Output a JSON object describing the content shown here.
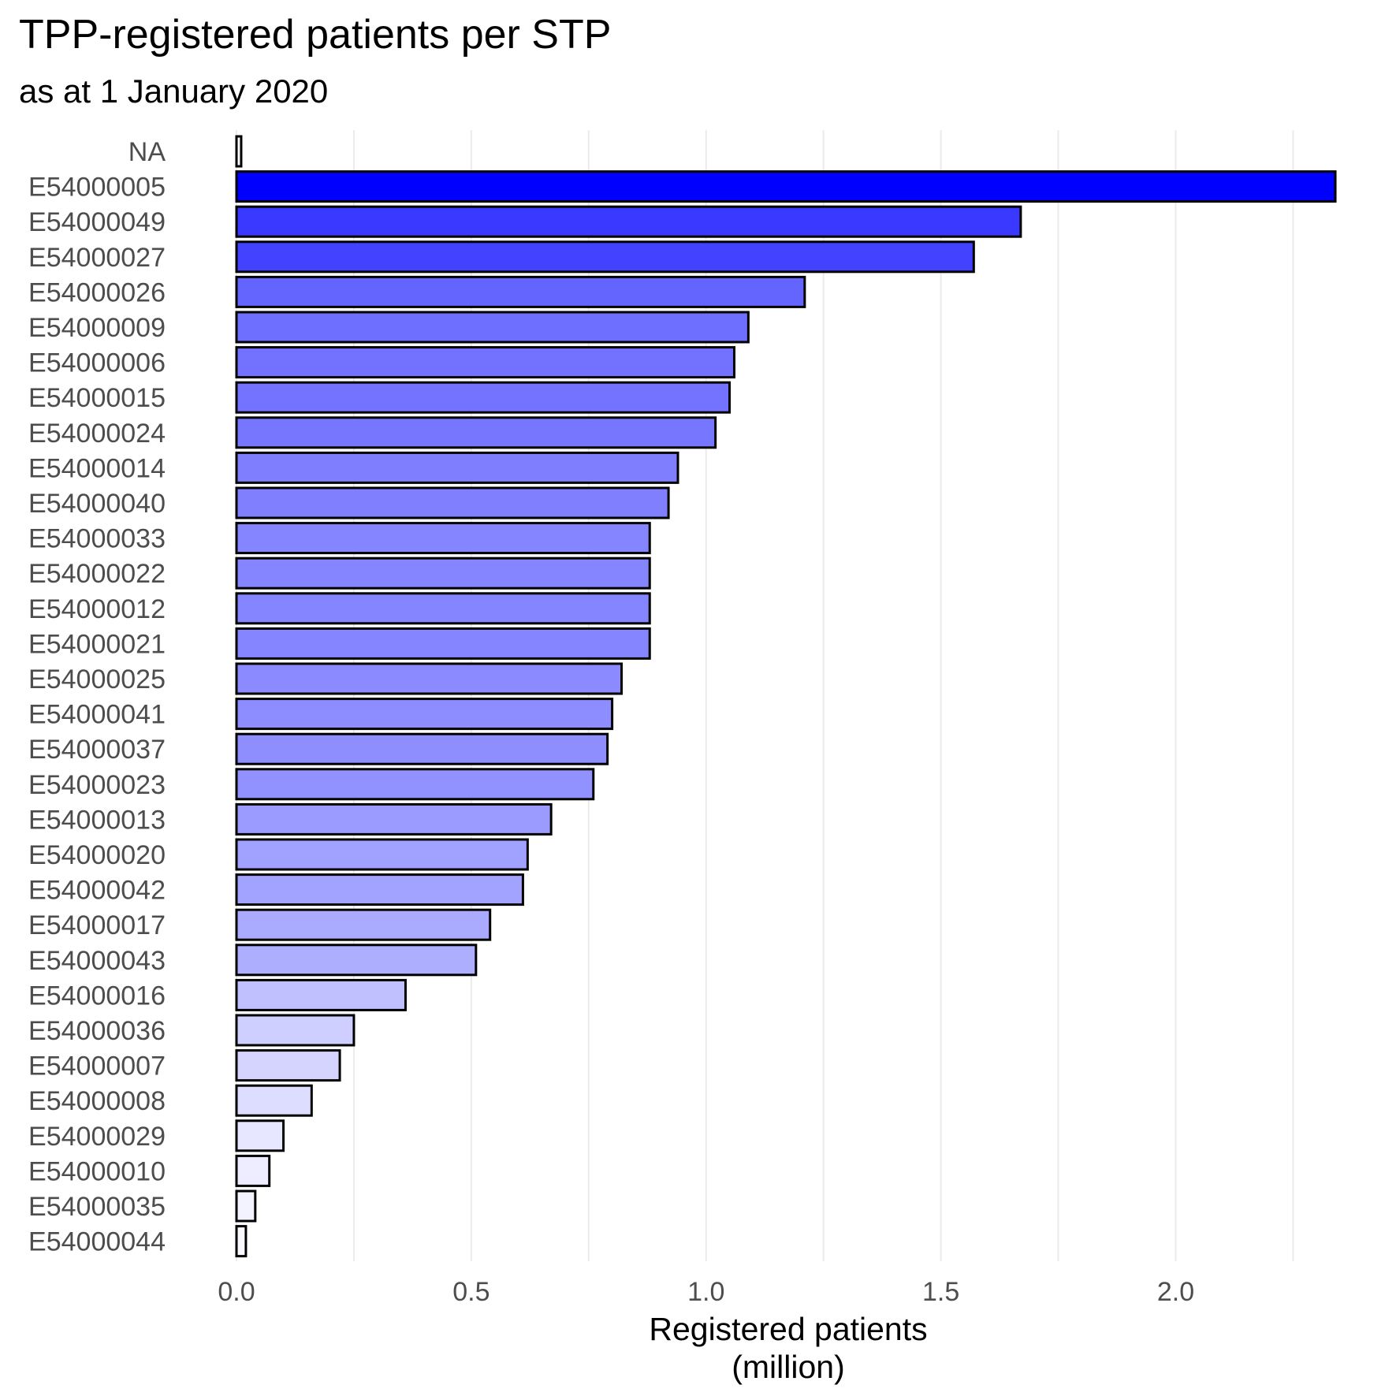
{
  "chart_data": {
    "type": "bar",
    "orientation": "horizontal",
    "title": "TPP-registered patients per STP",
    "subtitle": "as at 1 January 2020",
    "xlabel": [
      "Registered patients",
      "(million)"
    ],
    "ylabel": "",
    "xlim": [
      0,
      2.35
    ],
    "xticks": [
      0.0,
      0.5,
      1.0,
      1.5,
      2.0
    ],
    "xtick_labels": [
      "0.0",
      "0.5",
      "1.0",
      "1.5",
      "2.0"
    ],
    "grid": "vertical",
    "legend": "none",
    "fill_scale": {
      "low": "#ffffff",
      "high": "#0000ff"
    },
    "categories": [
      "NA",
      "E54000005",
      "E54000049",
      "E54000027",
      "E54000026",
      "E54000009",
      "E54000006",
      "E54000015",
      "E54000024",
      "E54000014",
      "E54000040",
      "E54000033",
      "E54000022",
      "E54000012",
      "E54000021",
      "E54000025",
      "E54000041",
      "E54000037",
      "E54000023",
      "E54000013",
      "E54000020",
      "E54000042",
      "E54000017",
      "E54000043",
      "E54000016",
      "E54000036",
      "E54000007",
      "E54000008",
      "E54000029",
      "E54000010",
      "E54000035",
      "E54000044"
    ],
    "values": [
      0.01,
      2.34,
      1.67,
      1.57,
      1.21,
      1.09,
      1.06,
      1.05,
      1.02,
      0.94,
      0.92,
      0.88,
      0.88,
      0.88,
      0.88,
      0.82,
      0.8,
      0.79,
      0.76,
      0.67,
      0.62,
      0.61,
      0.54,
      0.51,
      0.36,
      0.25,
      0.22,
      0.16,
      0.1,
      0.07,
      0.04,
      0.02
    ]
  }
}
